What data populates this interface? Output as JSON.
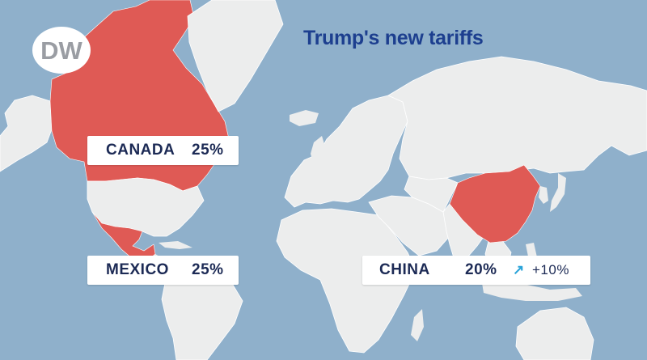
{
  "title": "Trump's new tariffs",
  "logo": {
    "text": "DW"
  },
  "labels": {
    "canada": {
      "country": "CANADA",
      "rate": "25%"
    },
    "mexico": {
      "country": "MEXICO",
      "rate": "25%"
    },
    "china": {
      "country": "CHINA",
      "rate": "20%",
      "change": "+10%"
    }
  },
  "colors": {
    "ocean": "#8fb0cb",
    "land": "#eceded",
    "tariff": "#df5a55",
    "title": "#1d3f8f",
    "label_text": "#1c2a55",
    "arrow": "#29a3d9"
  },
  "icons": {
    "trend": "arrow-up-right-icon"
  }
}
